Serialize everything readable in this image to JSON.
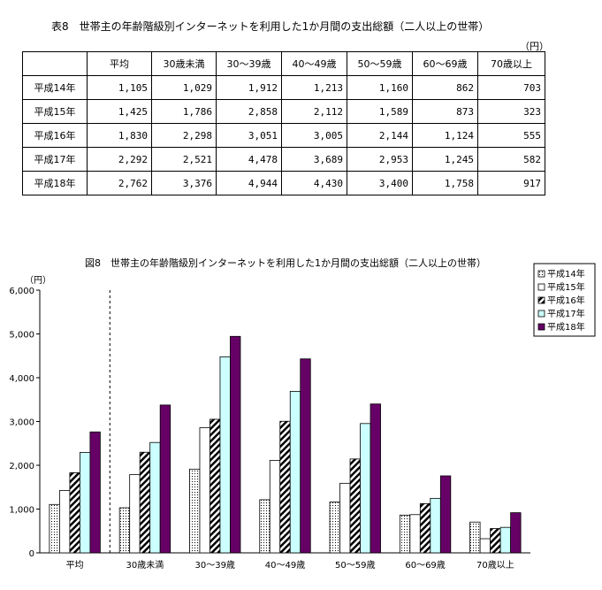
{
  "table": {
    "title": "表8　世帯主の年齢階級別インターネットを利用した1か月間の支出総額（二人以上の世帯）",
    "unit": "（円）",
    "columns": [
      "",
      "平均",
      "30歳未満",
      "30～39歳",
      "40～49歳",
      "50～59歳",
      "60～69歳",
      "70歳以上"
    ],
    "rows": [
      {
        "label": "平成14年",
        "values": [
          "1,105",
          "1,029",
          "1,912",
          "1,213",
          "1,160",
          "862",
          "703"
        ]
      },
      {
        "label": "平成15年",
        "values": [
          "1,425",
          "1,786",
          "2,858",
          "2,112",
          "1,589",
          "873",
          "323"
        ]
      },
      {
        "label": "平成16年",
        "values": [
          "1,830",
          "2,298",
          "3,051",
          "3,005",
          "2,144",
          "1,124",
          "555"
        ]
      },
      {
        "label": "平成17年",
        "values": [
          "2,292",
          "2,521",
          "4,478",
          "3,689",
          "2,953",
          "1,245",
          "582"
        ]
      },
      {
        "label": "平成18年",
        "values": [
          "2,762",
          "3,376",
          "4,944",
          "4,430",
          "3,400",
          "1,758",
          "917"
        ]
      }
    ]
  },
  "chart_data": {
    "type": "bar",
    "title": "図8　世帯主の年齢階級別インターネットを利用した1か月間の支出総額（二人以上の世帯）",
    "ylabel": "（円）",
    "ylim": [
      0,
      6000
    ],
    "yticks": [
      "0",
      "1,000",
      "2,000",
      "3,000",
      "4,000",
      "5,000",
      "6,000"
    ],
    "categories": [
      "平均",
      "30歳未満",
      "30～39歳",
      "40～49歳",
      "50～59歳",
      "60～69歳",
      "70歳以上"
    ],
    "legend": "right",
    "series": [
      {
        "name": "平成14年",
        "fill": "dots",
        "values": [
          1105,
          1029,
          1912,
          1213,
          1160,
          862,
          703
        ]
      },
      {
        "name": "平成15年",
        "fill": "#ffffff",
        "values": [
          1425,
          1786,
          2858,
          2112,
          1589,
          873,
          323
        ]
      },
      {
        "name": "平成16年",
        "fill": "hatch",
        "values": [
          1830,
          2298,
          3051,
          3005,
          2144,
          1124,
          555
        ]
      },
      {
        "name": "平成17年",
        "fill": "#ccffff",
        "values": [
          2292,
          2521,
          4478,
          3689,
          2953,
          1245,
          582
        ]
      },
      {
        "name": "平成18年",
        "fill": "#660066",
        "values": [
          2762,
          3376,
          4944,
          4430,
          3400,
          1758,
          917
        ]
      }
    ]
  }
}
